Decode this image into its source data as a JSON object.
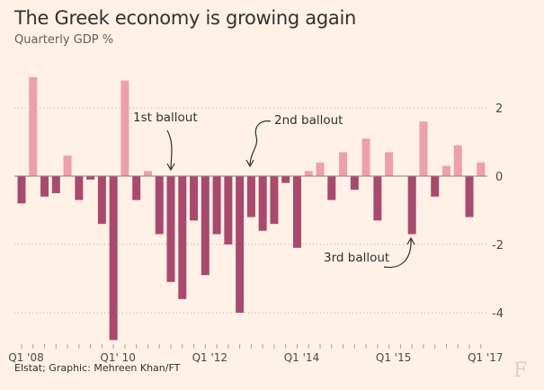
{
  "title": "The Greek economy is growing again",
  "subtitle": "Quarterly GDP %",
  "source": "Elstat; Graphic: Mehreen Khan/FT",
  "logo": "F",
  "colors": {
    "background": "#fff1e5",
    "positive": "#eda0a7",
    "negative": "#a84a6e",
    "grid": "#b8aea6"
  },
  "chart_data": {
    "type": "bar",
    "title": "The Greek economy is growing again",
    "ylabel": "Quarterly GDP %",
    "ylim": [
      -4.8,
      3
    ],
    "yticks": [
      2,
      0,
      -2,
      -4
    ],
    "grid": true,
    "categories": [
      "Q1 '08",
      "",
      "",
      "",
      "",
      "",
      "",
      "",
      "Q1' 10",
      "",
      "",
      "",
      "",
      "",
      "",
      "",
      "Q1 '12",
      "",
      "",
      "",
      "",
      "",
      "",
      "",
      "Q1 '14",
      "",
      "",
      "",
      "",
      "",
      "",
      "",
      "Q1 '15",
      "",
      "",
      "",
      "",
      "",
      "",
      "",
      "Q1 '17"
    ],
    "values": [
      -0.8,
      2.9,
      -0.6,
      -0.5,
      0.6,
      -0.7,
      -0.1,
      -1.4,
      -4.8,
      2.8,
      -0.7,
      0.15,
      -1.7,
      -3.1,
      -3.6,
      -1.3,
      -2.9,
      -1.7,
      -2.0,
      -4.0,
      -1.2,
      -1.6,
      -1.4,
      -0.2,
      -2.1,
      0.15,
      0.4,
      -0.7,
      0.7,
      -0.4,
      1.1,
      -1.3,
      0.7,
      0,
      -1.7,
      1.6,
      -0.6,
      0.3,
      0.9,
      -1.2,
      0.4
    ],
    "annotations": [
      {
        "text": "1st ballout",
        "quarter_index": 13
      },
      {
        "text": "2nd ballout",
        "quarter_index": 20
      },
      {
        "text": "3rd ballout",
        "quarter_index": 34
      }
    ]
  }
}
